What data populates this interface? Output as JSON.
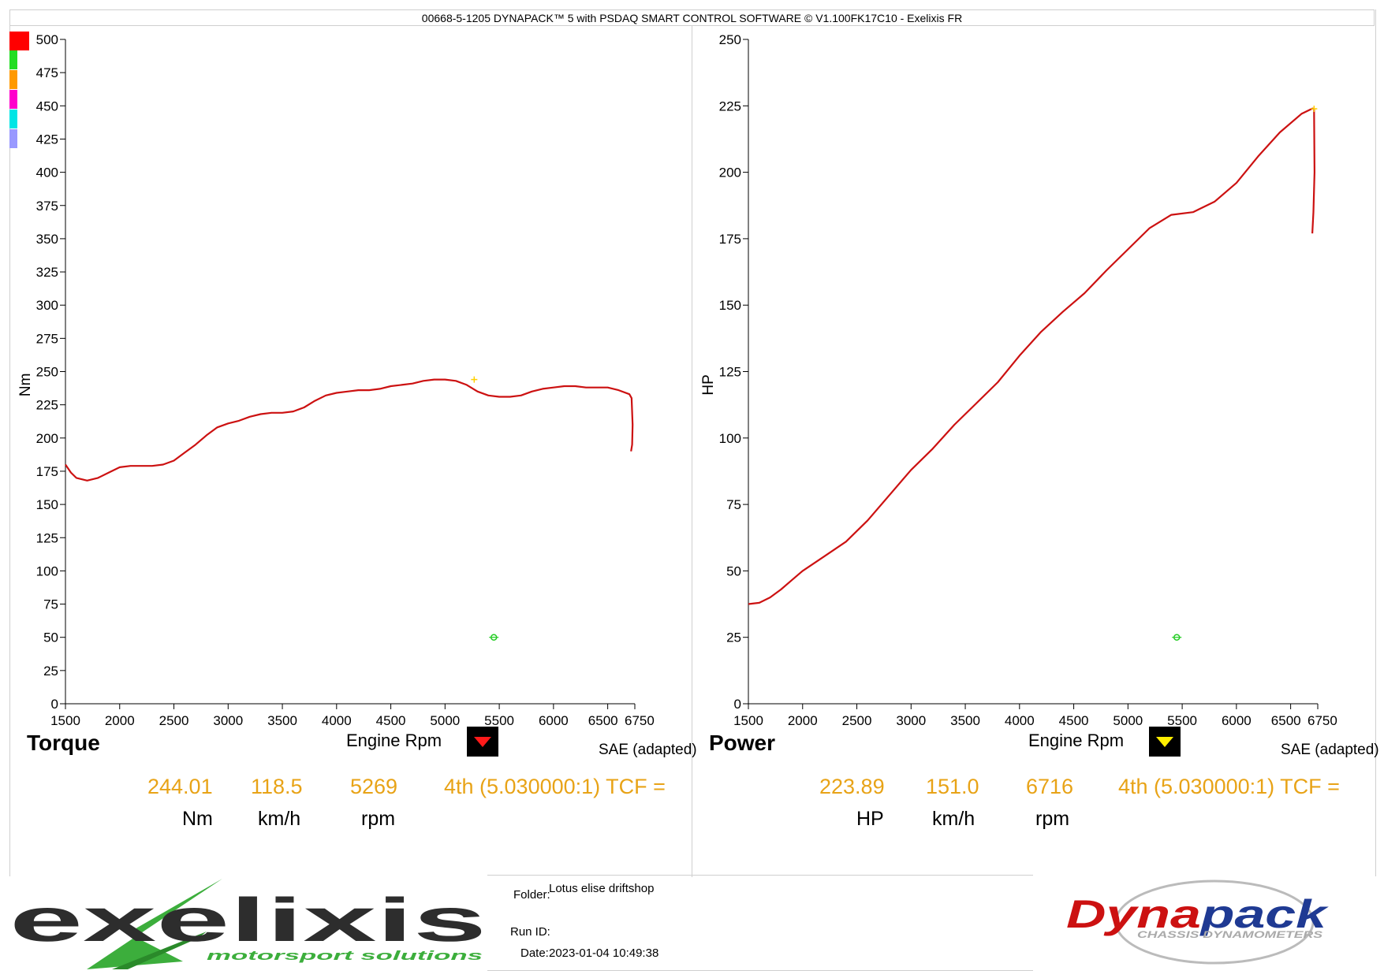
{
  "header": {
    "title": "00668-5-1205 DYNAPACK™ 5 with PSDAQ SMART CONTROL SOFTWARE © V1.100FK17C10 - Exelixis FR"
  },
  "legend_colors": [
    "#ff0000",
    "#22dd22",
    "#ff9900",
    "#ff00cc",
    "#00e5e5",
    "#9999ff"
  ],
  "chart_data": [
    {
      "type": "line",
      "name": "torque",
      "ylabel": "Nm",
      "xlabel": "Engine Rpm",
      "xlim": [
        1500,
        6750
      ],
      "ylim": [
        0,
        500
      ],
      "x_ticks": [
        "1500",
        "2000",
        "2500",
        "3000",
        "3500",
        "4000",
        "4500",
        "5000",
        "5500",
        "6000",
        "6500",
        "6750"
      ],
      "y_ticks": [
        "0",
        "25",
        "50",
        "75",
        "100",
        "125",
        "150",
        "175",
        "200",
        "225",
        "250",
        "275",
        "300",
        "325",
        "350",
        "375",
        "400",
        "425",
        "450",
        "475",
        "500"
      ],
      "line_color": "#cc1111",
      "series": [
        {
          "x": [
            1500,
            1550,
            1600,
            1700,
            1800,
            1900,
            2000,
            2100,
            2200,
            2300,
            2400,
            2500,
            2600,
            2700,
            2800,
            2900,
            3000,
            3100,
            3200,
            3300,
            3400,
            3500,
            3600,
            3700,
            3800,
            3900,
            4000,
            4100,
            4200,
            4300,
            4400,
            4500,
            4600,
            4700,
            4800,
            4900,
            5000,
            5100,
            5200,
            5300,
            5400,
            5500,
            5600,
            5700,
            5800,
            5900,
            6000,
            6100,
            6200,
            6300,
            6400,
            6500,
            6600,
            6700,
            6720,
            6730,
            6725,
            6715
          ],
          "y": [
            180,
            174,
            170,
            168,
            170,
            174,
            178,
            179,
            179,
            179,
            180,
            183,
            189,
            195,
            202,
            208,
            211,
            213,
            216,
            218,
            219,
            219,
            220,
            223,
            228,
            232,
            234,
            235,
            236,
            236,
            237,
            239,
            240,
            241,
            243,
            244,
            244,
            243,
            240,
            235,
            232,
            231,
            231,
            232,
            235,
            237,
            238,
            239,
            239,
            238,
            238,
            238,
            236,
            233,
            230,
            210,
            195,
            190
          ]
        }
      ],
      "peak_marker": {
        "x": 5269,
        "y": 244.01
      },
      "green_marker": {
        "x": 5450,
        "y": 50
      },
      "footer_label": "Torque",
      "correction": "SAE (adapted)",
      "readout": {
        "value": "244.01",
        "speed": "118.5",
        "rpm": "5269",
        "gear": "4th (5.030000:1) TCF =",
        "value_unit": "Nm",
        "speed_unit": "km/h",
        "rpm_unit": "rpm"
      },
      "marker_color": "#ff1a1a"
    },
    {
      "type": "line",
      "name": "power",
      "ylabel": "HP",
      "xlabel": "Engine Rpm",
      "xlim": [
        1500,
        6750
      ],
      "ylim": [
        0,
        250
      ],
      "x_ticks": [
        "1500",
        "2000",
        "2500",
        "3000",
        "3500",
        "4000",
        "4500",
        "5000",
        "5500",
        "6000",
        "6500",
        "6750"
      ],
      "y_ticks": [
        "0",
        "25",
        "50",
        "75",
        "100",
        "125",
        "150",
        "175",
        "200",
        "225",
        "250"
      ],
      "line_color": "#cc1111",
      "series": [
        {
          "x": [
            1500,
            1600,
            1700,
            1800,
            1900,
            2000,
            2200,
            2400,
            2600,
            2800,
            3000,
            3200,
            3400,
            3600,
            3800,
            4000,
            4200,
            4400,
            4600,
            4800,
            5000,
            5200,
            5400,
            5600,
            5800,
            6000,
            6200,
            6400,
            6600,
            6700,
            6716,
            6720,
            6710,
            6700
          ],
          "y": [
            37.5,
            38,
            40,
            43,
            46.5,
            50,
            55.5,
            61,
            69,
            78.5,
            88,
            96,
            105,
            113,
            121,
            131,
            140,
            147.5,
            154.5,
            163,
            171,
            179,
            184,
            185,
            189,
            196,
            206,
            215,
            222,
            224,
            223.89,
            200,
            185,
            177
          ]
        }
      ],
      "peak_marker": {
        "x": 6716,
        "y": 223.89
      },
      "green_marker": {
        "x": 5450,
        "y": 25
      },
      "footer_label": "Power",
      "correction": "SAE (adapted)",
      "readout": {
        "value": "223.89",
        "speed": "151.0",
        "rpm": "6716",
        "gear": "4th (5.030000:1) TCF =",
        "value_unit": "HP",
        "speed_unit": "km/h",
        "rpm_unit": "rpm"
      },
      "marker_color": "#ffee00"
    }
  ],
  "info": {
    "folder_label": "Folder:",
    "folder_value": "Lotus elise driftshop",
    "runid_label": "Run ID:",
    "runid_value": "",
    "date_label": "Date:",
    "date_value": "2023-01-04 10:49:38"
  },
  "logos": {
    "left": "exelixis",
    "left_tagline": "motorsport solutions",
    "right": "Dynapack",
    "right_tagline": "CHASSIS DYNAMOMETERS"
  }
}
